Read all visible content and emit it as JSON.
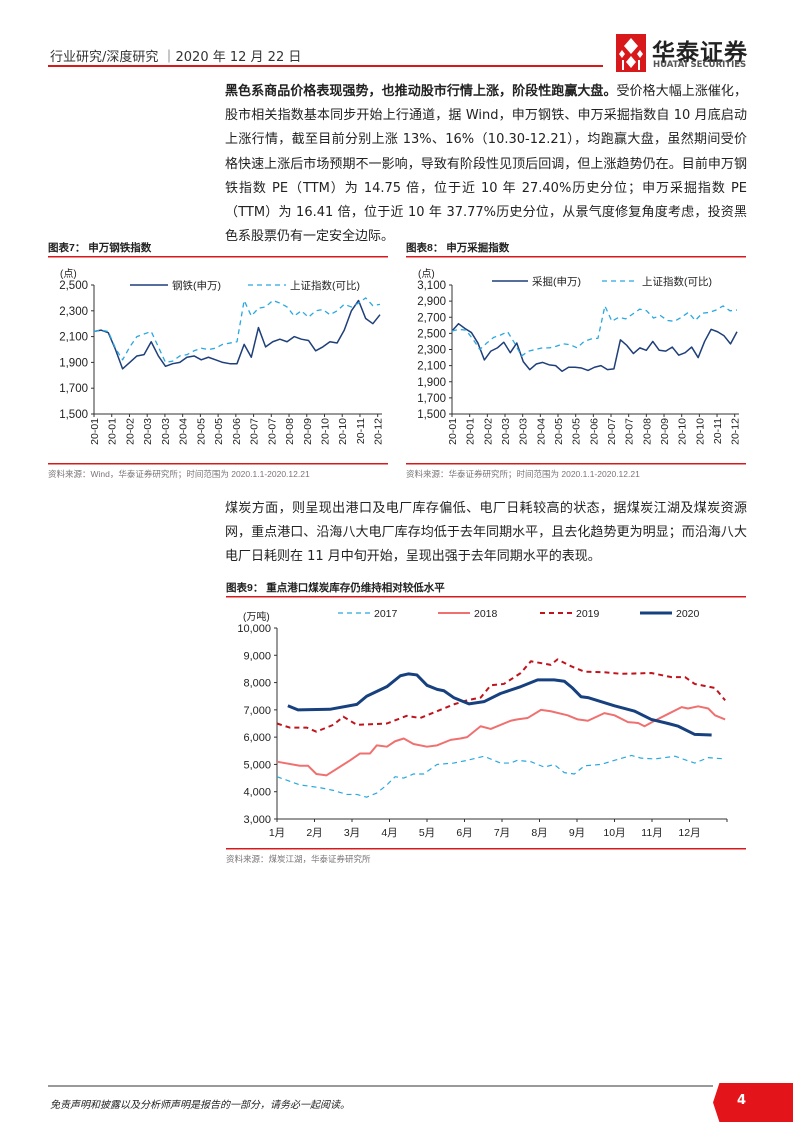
{
  "header": {
    "title": "行业研究/深度研究 ｜2020 年 12 月 22 日",
    "logo_cn": "华泰证券",
    "logo_en": "HUATAI SECURITIES",
    "accent": "#d7191c"
  },
  "para1": {
    "bold": "黑色系商品价格表现强势，也推动股市行情上涨，阶段性跑赢大盘。",
    "text": "受价格大幅上涨催化，股市相关指数基本同步开始上行通道，据 Wind，申万钢铁、申万采掘指数自 10 月底启动上涨行情，截至目前分别上涨 13%、16%（10.30-12.21），均跑赢大盘，虽然期间受价格快速上涨后市场预期不一影响，导致有阶段性见顶后回调，但上涨趋势仍在。目前申万钢铁指数 PE（TTM）为 14.75 倍，位于近 10 年 27.40%历史分位；申万采掘指数 PE（TTM）为 16.41 倍，位于近 10 年 37.77%历史分位，从景气度修复角度考虑，投资黑色系股票仍有一定安全边际。"
  },
  "para2": {
    "text": "煤炭方面，则呈现出港口及电厂库存偏低、电厂日耗较高的状态，据煤炭江湖及煤炭资源网，重点港口、沿海八大电厂库存均低于去年同期水平，且去化趋势更为明显；而沿海八大电厂日耗则在 11 月中旬开始，呈现出强于去年同期水平的表现。"
  },
  "footer": {
    "disclaimer": "免责声明和披露以及分析师声明是报告的一部分，请务必一起阅读。",
    "page": "4"
  },
  "chart_data": [
    {
      "type": "line",
      "title": "图表7：  申万钢铁指数",
      "ylabel": "(点)",
      "ylim": [
        1500,
        2500
      ],
      "yticks": [
        "1,500",
        "1,700",
        "1,900",
        "2,100",
        "2,300",
        "2,500"
      ],
      "yvals": [
        1500,
        1700,
        1900,
        2100,
        2300,
        2500
      ],
      "x_labels": [
        "20-01",
        "20-01",
        "20-02",
        "20-03",
        "20-03",
        "20-04",
        "20-05",
        "20-05",
        "20-06",
        "20-07",
        "20-07",
        "20-08",
        "20-09",
        "20-10",
        "20-10",
        "20-11",
        "20-12"
      ],
      "series": [
        {
          "name": "钢铁(申万)",
          "color": "#1f3f7a",
          "style": "solid",
          "values": [
            2140,
            2150,
            2130,
            2000,
            1850,
            1900,
            1950,
            1960,
            2060,
            1950,
            1870,
            1890,
            1900,
            1940,
            1950,
            1920,
            1940,
            1920,
            1900,
            1890,
            1890,
            2040,
            1940,
            2170,
            2020,
            2060,
            2080,
            2060,
            2100,
            2080,
            2070,
            1990,
            2020,
            2060,
            2050,
            2150,
            2300,
            2380,
            2240,
            2200,
            2270
          ]
        },
        {
          "name": "上证指数(可比)",
          "color": "#29a8e0",
          "style": "dashed",
          "values": [
            2140,
            2150,
            2140,
            2010,
            1920,
            2020,
            2100,
            2120,
            2140,
            2020,
            1900,
            1910,
            1950,
            1960,
            1990,
            2010,
            2000,
            2010,
            2040,
            2050,
            2060,
            2380,
            2260,
            2320,
            2330,
            2380,
            2360,
            2330,
            2260,
            2300,
            2250,
            2300,
            2310,
            2270,
            2300,
            2350,
            2330,
            2360,
            2400,
            2340,
            2350
          ]
        }
      ],
      "source": "资料来源：Wind，华泰证券研究所；时间范围为 2020.1.1-2020.12.21"
    },
    {
      "type": "line",
      "title": "图表8：  申万采掘指数",
      "ylabel": "(点)",
      "ylim": [
        1500,
        3100
      ],
      "yticks": [
        "1,500",
        "1,700",
        "1,900",
        "2,100",
        "2,300",
        "2,500",
        "2,700",
        "2,900",
        "3,100"
      ],
      "yvals": [
        1500,
        1700,
        1900,
        2100,
        2300,
        2500,
        2700,
        2900,
        3100
      ],
      "x_labels": [
        "20-01",
        "20-01",
        "20-02",
        "20-03",
        "20-03",
        "20-04",
        "20-05",
        "20-05",
        "20-06",
        "20-07",
        "20-07",
        "20-08",
        "20-09",
        "20-10",
        "20-10",
        "20-11",
        "20-12"
      ],
      "series": [
        {
          "name": "采掘(申万)",
          "color": "#1f3f7a",
          "style": "solid",
          "values": [
            2530,
            2620,
            2560,
            2510,
            2380,
            2170,
            2280,
            2320,
            2390,
            2260,
            2380,
            2150,
            2050,
            2120,
            2140,
            2110,
            2100,
            2030,
            2080,
            2080,
            2070,
            2040,
            2080,
            2100,
            2050,
            2060,
            2420,
            2350,
            2250,
            2320,
            2290,
            2400,
            2290,
            2280,
            2330,
            2230,
            2260,
            2330,
            2200,
            2400,
            2550,
            2520,
            2470,
            2370,
            2520
          ]
        },
        {
          "name": "上证指数(可比)",
          "color": "#29a8e0",
          "style": "dashed",
          "values": [
            2530,
            2550,
            2540,
            2430,
            2300,
            2380,
            2450,
            2480,
            2520,
            2380,
            2220,
            2280,
            2300,
            2320,
            2320,
            2340,
            2370,
            2360,
            2320,
            2400,
            2430,
            2440,
            2840,
            2650,
            2700,
            2680,
            2740,
            2800,
            2780,
            2690,
            2720,
            2660,
            2650,
            2700,
            2760,
            2660,
            2750,
            2760,
            2790,
            2840,
            2780,
            2790
          ]
        }
      ],
      "source": "资料来源：华泰证券研究所；时间范围为 2020.1.1-2020.12.21"
    },
    {
      "type": "line",
      "title": "图表9：  重点港口煤炭库存仍维持相对较低水平",
      "ylabel": "(万吨)",
      "ylim": [
        3000,
        10000
      ],
      "xlim": [
        1,
        13
      ],
      "yticks": [
        "3,000",
        "4,000",
        "5,000",
        "6,000",
        "7,000",
        "8,000",
        "9,000",
        "10,000"
      ],
      "yvals": [
        3000,
        4000,
        5000,
        6000,
        7000,
        8000,
        9000,
        10000
      ],
      "x_labels": [
        "1月",
        "2月",
        "3月",
        "4月",
        "5月",
        "6月",
        "7月",
        "8月",
        "9月",
        "10月",
        "11月",
        "12月"
      ],
      "series": [
        {
          "name": "2017",
          "color": "#29a8e0",
          "style": "dashed",
          "x": [
            1,
            1.61,
            2.14,
            2.5,
            2.86,
            3.13,
            3.39,
            3.66,
            3.93,
            4.15,
            4.38,
            4.64,
            4.91,
            5.27,
            5.71,
            6.07,
            6.52,
            6.96,
            7.23,
            7.41,
            7.77,
            8.13,
            8.39,
            8.66,
            8.93,
            9.2,
            9.64,
            10,
            10.45,
            10.71,
            11.07,
            11.61,
            12.14,
            12.5,
            12.95
          ],
          "y": [
            4550,
            4250,
            4150,
            4050,
            3900,
            3900,
            3800,
            3950,
            4250,
            4550,
            4500,
            4650,
            4650,
            5000,
            5050,
            5150,
            5300,
            5050,
            5050,
            5150,
            5100,
            4900,
            5000,
            4700,
            4650,
            4950,
            5000,
            5150,
            5330,
            5230,
            5200,
            5300,
            5050,
            5250,
            5200
          ]
        },
        {
          "name": "2018",
          "color": "#f07070",
          "style": "solid",
          "x": [
            1,
            1.61,
            1.83,
            2.05,
            2.32,
            2.95,
            3.21,
            3.48,
            3.66,
            3.93,
            4.15,
            4.38,
            4.64,
            5,
            5.27,
            5.63,
            5.89,
            6.07,
            6.43,
            6.7,
            7.23,
            7.41,
            7.68,
            8.04,
            8.3,
            8.75,
            9.02,
            9.29,
            9.73,
            10,
            10.36,
            10.63,
            10.8,
            11.07,
            11.43,
            11.79,
            11.96,
            12.23,
            12.5,
            12.68,
            12.95
          ],
          "y": [
            5100,
            4950,
            4950,
            4650,
            4600,
            5150,
            5400,
            5400,
            5700,
            5650,
            5850,
            5950,
            5750,
            5650,
            5700,
            5900,
            5950,
            6000,
            6400,
            6300,
            6600,
            6650,
            6700,
            7000,
            6950,
            6800,
            6650,
            6600,
            6880,
            6800,
            6550,
            6520,
            6400,
            6600,
            6850,
            7100,
            7050,
            7130,
            7050,
            6800,
            6650
          ]
        },
        {
          "name": "2019",
          "color": "#c0141c",
          "style": "dashed",
          "x": [
            1,
            1.34,
            1.79,
            2.05,
            2.5,
            2.77,
            3.13,
            3.93,
            4.46,
            4.82,
            5.27,
            5.71,
            6.07,
            6.43,
            6.7,
            7.05,
            7.5,
            7.77,
            8.3,
            8.48,
            8.84,
            9.2,
            9.73,
            10.18,
            10.98,
            11.52,
            11.88,
            12.14,
            12.68,
            12.95
          ],
          "y": [
            6500,
            6350,
            6350,
            6200,
            6450,
            6750,
            6450,
            6500,
            6780,
            6700,
            6950,
            7200,
            7350,
            7450,
            7900,
            7950,
            8350,
            8780,
            8650,
            8850,
            8600,
            8400,
            8380,
            8320,
            8350,
            8200,
            8200,
            7950,
            7800,
            7350
          ]
        },
        {
          "name": "2020",
          "color": "#17407e",
          "style": "solid",
          "x": [
            1.29,
            1.56,
            2.41,
            3.13,
            3.39,
            3.93,
            4.29,
            4.51,
            4.73,
            5,
            5.27,
            5.45,
            5.71,
            6.12,
            6.52,
            6.96,
            7.5,
            7.95,
            8.39,
            8.66,
            8.88,
            9.11,
            9.29,
            10,
            10.54,
            10.98,
            11.43,
            11.7,
            12.14,
            12.59
          ],
          "y": [
            7150,
            7000,
            7020,
            7200,
            7500,
            7850,
            8250,
            8320,
            8280,
            7900,
            7750,
            7700,
            7450,
            7220,
            7300,
            7600,
            7850,
            8100,
            8100,
            8050,
            7800,
            7480,
            7450,
            7150,
            6950,
            6650,
            6500,
            6400,
            6100,
            6080
          ]
        }
      ],
      "source": "资料来源：煤炭江湖，华泰证券研究所"
    }
  ]
}
